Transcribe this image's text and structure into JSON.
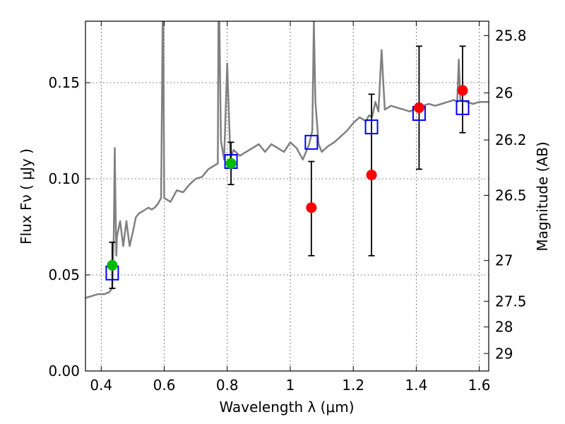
{
  "chart_data": {
    "type": "scatter",
    "title": "",
    "xlabel": "Wavelength  λ (μm)",
    "ylabel": "Flux  Fν  ( μJy )",
    "y2label": "Magnitude (AB)",
    "xlim": [
      0.35,
      1.63
    ],
    "ylim": [
      0.0,
      0.182
    ],
    "grid": true,
    "x_ticks": [
      0.4,
      0.6,
      0.8,
      1.0,
      1.2,
      1.4,
      1.6
    ],
    "x_tick_labels": [
      "0.4",
      "0.6",
      "0.8",
      "1",
      "1.2",
      "1.4",
      "1.6"
    ],
    "y_ticks": [
      0.0,
      0.05,
      0.1,
      0.15
    ],
    "y_tick_labels": [
      "0.00",
      "0.05",
      "0.10",
      "0.15"
    ],
    "y2_ticks": [
      {
        "label": "25.8",
        "flux": 0.1745
      },
      {
        "label": "26",
        "flux": 0.1447
      },
      {
        "label": "26.2",
        "flux": 0.1202
      },
      {
        "label": "26.5",
        "flux": 0.0914
      },
      {
        "label": "27",
        "flux": 0.0575
      },
      {
        "label": "27.5",
        "flux": 0.0363
      },
      {
        "label": "28",
        "flux": 0.0229
      },
      {
        "label": "29",
        "flux": 0.0091
      }
    ],
    "colors": {
      "spectrum": "#808080",
      "model_box": "#0000ff",
      "obs_red": "#ff0000",
      "obs_green": "#00bb00",
      "error_bar": "#000000"
    },
    "series": [
      {
        "kind": "spectrum",
        "x": [
          0.35,
          0.37,
          0.39,
          0.41,
          0.425,
          0.435,
          0.44,
          0.443,
          0.445,
          0.448,
          0.45,
          0.46,
          0.47,
          0.48,
          0.49,
          0.5,
          0.51,
          0.52,
          0.53,
          0.54,
          0.55,
          0.56,
          0.57,
          0.58,
          0.59,
          0.595,
          0.597,
          0.6,
          0.61,
          0.62,
          0.64,
          0.66,
          0.68,
          0.7,
          0.72,
          0.74,
          0.76,
          0.77,
          0.772,
          0.775,
          0.78,
          0.79,
          0.8,
          0.81,
          0.82,
          0.84,
          0.86,
          0.88,
          0.9,
          0.92,
          0.94,
          0.96,
          0.98,
          1.0,
          1.02,
          1.04,
          1.06,
          1.07,
          1.075,
          1.08,
          1.09,
          1.1,
          1.12,
          1.14,
          1.16,
          1.18,
          1.2,
          1.22,
          1.24,
          1.25,
          1.26,
          1.27,
          1.28,
          1.29,
          1.3,
          1.32,
          1.34,
          1.36,
          1.38,
          1.4,
          1.42,
          1.44,
          1.46,
          1.48,
          1.5,
          1.52,
          1.53,
          1.535,
          1.54,
          1.56,
          1.58,
          1.6,
          1.62,
          1.63
        ],
        "y": [
          0.038,
          0.039,
          0.04,
          0.04,
          0.041,
          0.043,
          0.07,
          0.116,
          0.09,
          0.06,
          0.07,
          0.078,
          0.065,
          0.078,
          0.065,
          0.072,
          0.08,
          0.082,
          0.083,
          0.084,
          0.085,
          0.084,
          0.085,
          0.087,
          0.09,
          0.182,
          0.182,
          0.09,
          0.089,
          0.088,
          0.094,
          0.093,
          0.097,
          0.1,
          0.101,
          0.105,
          0.107,
          0.108,
          0.182,
          0.182,
          0.12,
          0.11,
          0.16,
          0.111,
          0.115,
          0.112,
          0.114,
          0.116,
          0.118,
          0.114,
          0.118,
          0.116,
          0.114,
          0.119,
          0.116,
          0.11,
          0.118,
          0.125,
          0.182,
          0.14,
          0.118,
          0.114,
          0.117,
          0.119,
          0.122,
          0.125,
          0.129,
          0.132,
          0.13,
          0.133,
          0.132,
          0.14,
          0.135,
          0.167,
          0.136,
          0.138,
          0.137,
          0.136,
          0.135,
          0.137,
          0.138,
          0.139,
          0.138,
          0.139,
          0.14,
          0.141,
          0.14,
          0.162,
          0.141,
          0.14,
          0.139,
          0.14,
          0.14,
          0.14
        ]
      },
      {
        "kind": "model_boxes",
        "x": [
          0.435,
          0.812,
          1.067,
          1.258,
          1.409,
          1.547
        ],
        "y": [
          0.051,
          0.109,
          0.119,
          0.127,
          0.134,
          0.137
        ]
      },
      {
        "kind": "obs_red",
        "x": [
          1.067,
          1.258,
          1.409,
          1.547
        ],
        "y": [
          0.085,
          0.102,
          0.137,
          0.146
        ],
        "yerr_low": [
          0.06,
          0.06,
          0.105,
          0.124
        ],
        "yerr_high": [
          0.109,
          0.144,
          0.169,
          0.169
        ]
      },
      {
        "kind": "obs_green",
        "x": [
          0.435,
          0.812
        ],
        "y": [
          0.055,
          0.108
        ],
        "yerr_low": [
          0.043,
          0.097
        ],
        "yerr_high": [
          0.067,
          0.119
        ]
      }
    ]
  }
}
